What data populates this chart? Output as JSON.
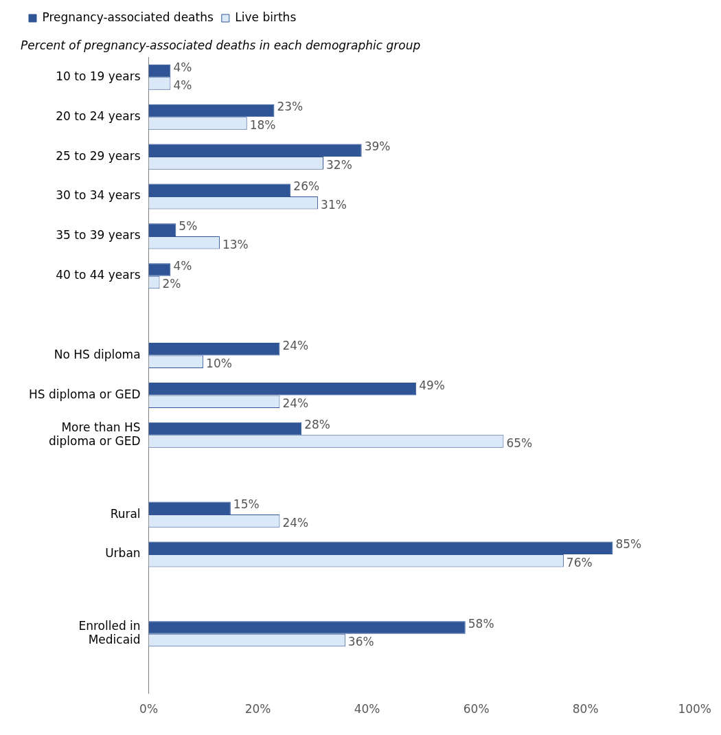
{
  "chart_data": {
    "type": "bar",
    "orientation": "horizontal",
    "title": "Percent of pregnancy-associated deaths in each demographic group",
    "categories": [
      "10 to 19 years",
      "20 to 24 years",
      "25 to 29 years",
      "30 to 34 years",
      "35 to 39 years",
      "40 to 44 years",
      null,
      "No HS diploma",
      "HS diploma or GED",
      "More than HS diploma or GED",
      null,
      "Rural",
      "Urban",
      null,
      "Enrolled in Medicaid",
      null
    ],
    "series": [
      {
        "name": "Pregnancy-associated deaths",
        "color": "#2f5597",
        "values": [
          4,
          23,
          39,
          26,
          5,
          4,
          null,
          24,
          49,
          28,
          null,
          15,
          85,
          null,
          58,
          null
        ],
        "value_labels": [
          "4%",
          "23%",
          "39%",
          "26%",
          "5%",
          "4%",
          null,
          "24%",
          "49%",
          "28%",
          null,
          "15%",
          "85%",
          null,
          "58%",
          null
        ]
      },
      {
        "name": "Live births",
        "color": "#dae8f7",
        "values": [
          4,
          18,
          32,
          31,
          13,
          2,
          null,
          10,
          24,
          65,
          null,
          24,
          76,
          null,
          36,
          null
        ],
        "value_labels": [
          "4%",
          "18%",
          "32%",
          "31%",
          "13%",
          "2%",
          null,
          "10%",
          "24%",
          "65%",
          null,
          "24%",
          "76%",
          null,
          "36%",
          null
        ]
      }
    ],
    "xlim": [
      0,
      100
    ],
    "xticks": [
      {
        "value": 0,
        "label": "0%"
      },
      {
        "value": 20,
        "label": "20%"
      },
      {
        "value": 40,
        "label": "40%"
      },
      {
        "value": 60,
        "label": "60%"
      },
      {
        "value": 80,
        "label": "80%"
      },
      {
        "value": 100,
        "label": "100%"
      }
    ],
    "grid": false,
    "legend": "top left"
  }
}
